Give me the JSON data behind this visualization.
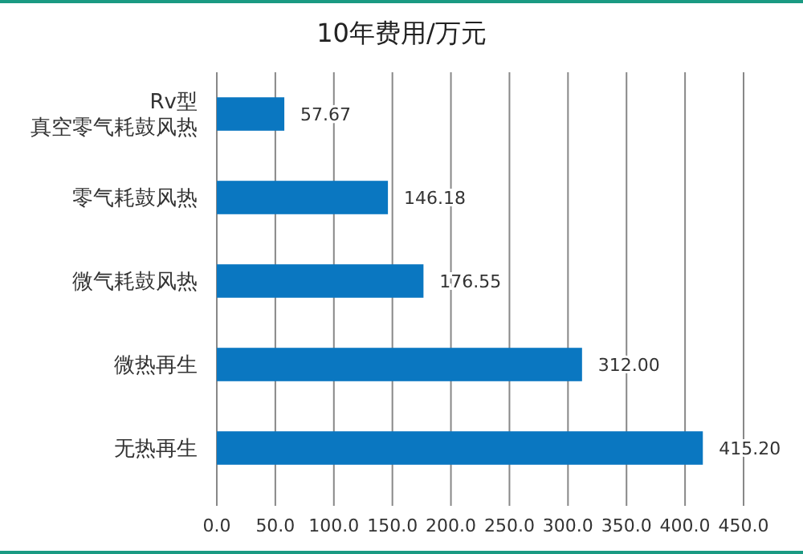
{
  "chart_data": {
    "type": "bar",
    "orientation": "horizontal",
    "title": "10年费用/万元",
    "categories": [
      "Rv型真空零气耗鼓风热",
      "零气耗鼓风热",
      "微气耗鼓风热",
      "微热再生",
      "无热再生"
    ],
    "values": [
      57.67,
      146.18,
      176.55,
      312.0,
      415.2
    ],
    "value_labels": [
      "57.67",
      "146.18",
      "176.55",
      "312.00",
      "415.20"
    ],
    "color": "#0a77c1",
    "xlim": [
      0,
      450
    ],
    "xticks": [
      {
        "value": 0,
        "label": "0.0"
      },
      {
        "value": 50,
        "label": "50.0"
      },
      {
        "value": 100,
        "label": "100.0"
      },
      {
        "value": 150,
        "label": "150.0"
      },
      {
        "value": 200,
        "label": "200.0"
      },
      {
        "value": 250,
        "label": "250.0"
      },
      {
        "value": 300,
        "label": "300.0"
      },
      {
        "value": 350,
        "label": "350.0"
      },
      {
        "value": 400,
        "label": "400.0"
      },
      {
        "value": 450,
        "label": "450.0"
      }
    ],
    "grid": "x"
  }
}
